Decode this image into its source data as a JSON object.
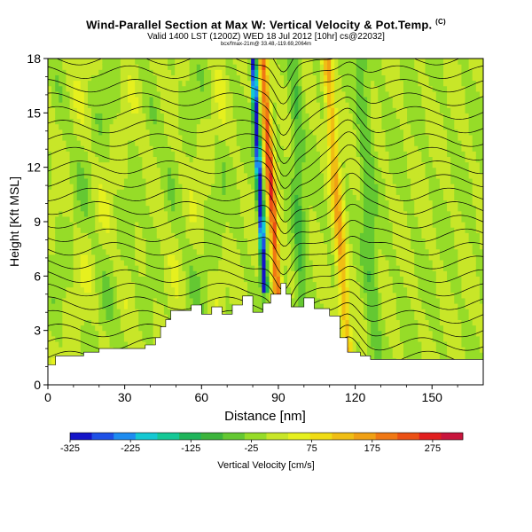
{
  "title": "Wind-Parallel Section at Max W: Vertical Velocity & Pot.Temp.",
  "title_mark": "(C)",
  "subtitle": "Valid 1400 LST (1200Z) WED 18 Jul 2012 [10hr] cs@22032]",
  "small_line": "bcx/fmax-21m@ 33.48,-119.69,2064m",
  "chart_data": {
    "type": "heatmap",
    "xlabel": "Distance [nm]",
    "ylabel": "Height [Kft MSL]",
    "xlim": [
      0,
      170
    ],
    "ylim": [
      0,
      18
    ],
    "x_ticks": [
      "0",
      "30",
      "60",
      "90",
      "120",
      "150"
    ],
    "x_tick_values": [
      0,
      30,
      60,
      90,
      120,
      150
    ],
    "y_ticks": [
      "0",
      "3",
      "6",
      "9",
      "12",
      "15",
      "18"
    ],
    "y_tick_values": [
      0,
      3,
      6,
      9,
      12,
      15,
      18
    ],
    "colorbar": {
      "label": "Vertical Velocity [cm/s]",
      "tick_labels": [
        "-325",
        "-225",
        "-125",
        "-25",
        "75",
        "175",
        "275"
      ],
      "tick_values": [
        -325,
        -225,
        -125,
        -25,
        75,
        175,
        275
      ],
      "range": [
        -325,
        325
      ],
      "colors": [
        "#1414c8",
        "#1e50e6",
        "#1e8cf0",
        "#14c8d2",
        "#14c896",
        "#1eb45a",
        "#3cb43c",
        "#64c832",
        "#96dc28",
        "#c8e628",
        "#e6f01e",
        "#f0dc14",
        "#f0be14",
        "#f0a014",
        "#f07814",
        "#eb5014",
        "#e11e1e",
        "#c8143c"
      ]
    },
    "terrain": [
      [
        0,
        1.1
      ],
      [
        3,
        1.1
      ],
      [
        3,
        1.6
      ],
      [
        14,
        1.6
      ],
      [
        14,
        1.8
      ],
      [
        20,
        1.8
      ],
      [
        20,
        2.0
      ],
      [
        38,
        2.0
      ],
      [
        38,
        2.2
      ],
      [
        42,
        2.2
      ],
      [
        42,
        2.6
      ],
      [
        44,
        2.6
      ],
      [
        44,
        3.2
      ],
      [
        46,
        3.2
      ],
      [
        46,
        3.6
      ],
      [
        48,
        3.6
      ],
      [
        48,
        4.1
      ],
      [
        56,
        4.1
      ],
      [
        56,
        4.4
      ],
      [
        60,
        4.4
      ],
      [
        60,
        3.9
      ],
      [
        64,
        3.9
      ],
      [
        64,
        4.3
      ],
      [
        68,
        4.3
      ],
      [
        68,
        3.9
      ],
      [
        72,
        3.9
      ],
      [
        72,
        4.4
      ],
      [
        76,
        4.4
      ],
      [
        76,
        4.9
      ],
      [
        80,
        4.9
      ],
      [
        80,
        4.0
      ],
      [
        84,
        4.0
      ],
      [
        84,
        4.5
      ],
      [
        87,
        4.5
      ],
      [
        87,
        5.0
      ],
      [
        91,
        5.0
      ],
      [
        91,
        5.6
      ],
      [
        93,
        5.6
      ],
      [
        93,
        5.0
      ],
      [
        95,
        5.0
      ],
      [
        95,
        4.3
      ],
      [
        100,
        4.3
      ],
      [
        100,
        4.8
      ],
      [
        104,
        4.8
      ],
      [
        104,
        4.2
      ],
      [
        110,
        4.2
      ],
      [
        110,
        3.8
      ],
      [
        114,
        3.8
      ],
      [
        114,
        2.6
      ],
      [
        117,
        2.6
      ],
      [
        117,
        1.8
      ],
      [
        122,
        1.8
      ],
      [
        122,
        1.6
      ],
      [
        126,
        1.6
      ],
      [
        126,
        1.4
      ],
      [
        170,
        1.4
      ]
    ]
  }
}
